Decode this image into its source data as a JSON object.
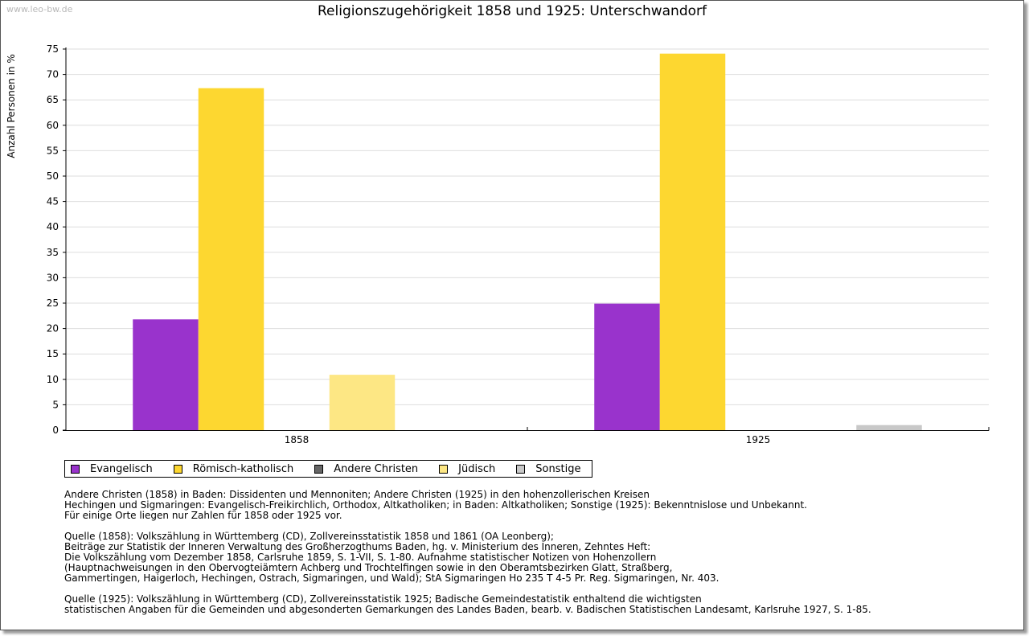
{
  "watermark": "www.leo-bw.de",
  "chart_data": {
    "type": "bar",
    "title": "Religionszugehörigkeit 1858 und 1925: Unterschwandorf",
    "xlabel": "",
    "ylabel": "Anzahl Personen in %",
    "ylim": [
      0,
      75
    ],
    "yticks": [
      0,
      5,
      10,
      15,
      20,
      25,
      30,
      35,
      40,
      45,
      50,
      55,
      60,
      65,
      70,
      75
    ],
    "categories": [
      "1858",
      "1925"
    ],
    "series": [
      {
        "name": "Evangelisch",
        "color": "#9933cc",
        "values": [
          21.8,
          24.9
        ]
      },
      {
        "name": "Römisch-katholisch",
        "color": "#fdd730",
        "values": [
          67.3,
          74.1
        ]
      },
      {
        "name": "Andere Christen",
        "color": "#666666",
        "values": [
          0,
          0
        ]
      },
      {
        "name": "Jüdisch",
        "color": "#fde784",
        "values": [
          10.9,
          0
        ]
      },
      {
        "name": "Sonstige",
        "color": "#c8c8c8",
        "values": [
          0,
          1.0
        ]
      }
    ],
    "grid": true,
    "legend": "bottom-left"
  },
  "notes": {
    "paragraphs": [
      [
        "Andere Christen (1858) in Baden: Dissidenten und Mennoniten; Andere Christen (1925) in den hohenzollerischen Kreisen",
        "Hechingen und Sigmaringen: Evangelisch-Freikirchlich, Orthodox, Altkatholiken; in Baden: Altkatholiken; Sonstige (1925): Bekenntnislose und Unbekannt.",
        "Für einige Orte liegen nur Zahlen für 1858 oder 1925 vor."
      ],
      [
        "Quelle (1858): Volkszählung in Württemberg (CD), Zollvereinsstatistik 1858 und 1861 (OA Leonberg);",
        "Beiträge zur Statistik der Inneren Verwaltung des Großherzogthums Baden, hg. v. Ministerium des Inneren, Zehntes Heft:",
        "Die Volkszählung vom Dezember 1858, Carlsruhe 1859, S. 1-VII, S. 1-80. Aufnahme statistischer Notizen von Hohenzollern",
        "(Hauptnachweisungen in den Obervogteiämtern Achberg und Trochtelfingen sowie in den Oberamtsbezirken Glatt, Straßberg,",
        "Gammertingen, Haigerloch, Hechingen, Ostrach, Sigmaringen, und Wald); StA Sigmaringen Ho 235 T 4-5 Pr. Reg. Sigmaringen, Nr. 403."
      ],
      [
        "Quelle (1925): Volkszählung in Württemberg (CD), Zollvereinsstatistik 1925; Badische Gemeindestatistik enthaltend die wichtigsten",
        "statistischen Angaben für die Gemeinden und abgesonderten Gemarkungen des Landes Baden, bearb. v. Badischen Statistischen Landesamt, Karlsruhe 1927, S. 1-85."
      ]
    ]
  }
}
